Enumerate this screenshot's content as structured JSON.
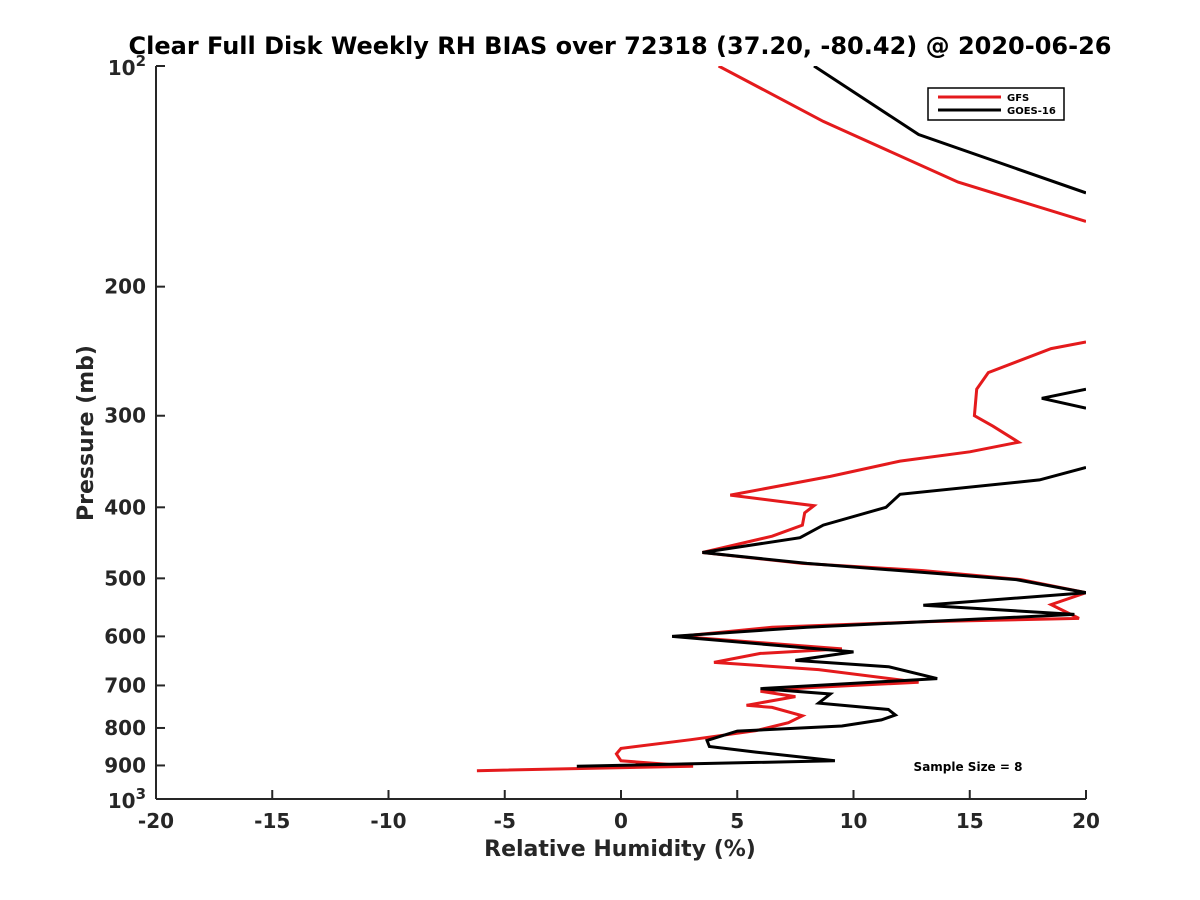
{
  "chart_data": {
    "type": "line",
    "title": "Clear Full Disk Weekly RH BIAS over 72318 (37.20, -80.42) @ 2020-06-26",
    "xlabel": "Relative Humidity (%)",
    "ylabel": "Pressure (mb)",
    "xlim": [
      -20,
      20
    ],
    "ylim": [
      100,
      1000
    ],
    "y_scale": "log",
    "y_reversed": true,
    "grid": false,
    "legend_position": "top-right",
    "x_ticks": [
      "-20",
      "-15",
      "-10",
      "-5",
      "0",
      "5",
      "10",
      "15",
      "20"
    ],
    "y_ticks": [
      {
        "value": 100,
        "base": "10",
        "exp": "2"
      },
      {
        "value": 200,
        "label": "200"
      },
      {
        "value": 300,
        "label": "300"
      },
      {
        "value": 400,
        "label": "400"
      },
      {
        "value": 500,
        "label": "500"
      },
      {
        "value": 600,
        "label": "600"
      },
      {
        "value": 700,
        "label": "700"
      },
      {
        "value": 800,
        "label": "800"
      },
      {
        "value": 900,
        "label": "900"
      },
      {
        "value": 1000,
        "base": "10",
        "exp": "3"
      }
    ],
    "annotation": "Sample Size = 8",
    "series": [
      {
        "name": "GFS",
        "color": "#e41a1c",
        "segments": [
          [
            [
              4.2,
              100
            ],
            [
              8.7,
              119
            ],
            [
              14.5,
              144
            ],
            [
              20,
              163
            ]
          ],
          [
            [
              20,
              238
            ],
            [
              18.5,
              243
            ],
            [
              15.8,
              262
            ],
            [
              15.3,
              276
            ],
            [
              15.2,
              300
            ],
            [
              16.0,
              310
            ],
            [
              17.1,
              326
            ],
            [
              15.0,
              336
            ],
            [
              12.0,
              346
            ],
            [
              9.0,
              363
            ],
            [
              4.7,
              385
            ],
            [
              8.3,
              398
            ],
            [
              7.9,
              407
            ],
            [
              7.8,
              423
            ],
            [
              6.5,
              438
            ],
            [
              3.5,
              461
            ],
            [
              7.8,
              477
            ],
            [
              13.0,
              488
            ],
            [
              17.2,
              502
            ],
            [
              20.0,
              523
            ],
            [
              18.5,
              543
            ],
            [
              19.7,
              567
            ],
            [
              13.0,
              573
            ],
            [
              6.5,
              583
            ],
            [
              2.5,
              600
            ],
            [
              9.5,
              624
            ],
            [
              6.0,
              633
            ],
            [
              4.0,
              651
            ],
            [
              8.5,
              666
            ],
            [
              12.8,
              693
            ],
            [
              8.0,
              705
            ],
            [
              6.0,
              713
            ],
            [
              7.5,
              725
            ],
            [
              5.4,
              745
            ],
            [
              6.5,
              750
            ],
            [
              7.8,
              770
            ],
            [
              7.2,
              787
            ],
            [
              5.8,
              807
            ],
            [
              3.0,
              830
            ],
            [
              0.0,
              853
            ],
            [
              -0.2,
              868
            ],
            [
              0.0,
              887
            ],
            [
              3.1,
              902
            ],
            [
              -6.2,
              915
            ]
          ]
        ]
      },
      {
        "name": "GOES-16",
        "color": "#000000",
        "segments": [
          [
            [
              8.3,
              100
            ],
            [
              12.8,
              124
            ],
            [
              20,
              149
            ]
          ],
          [
            [
              20,
              276
            ],
            [
              18.1,
              284
            ],
            [
              20,
              293
            ]
          ],
          [
            [
              20,
              353
            ],
            [
              18.0,
              367
            ],
            [
              12.0,
              384
            ],
            [
              11.4,
              400
            ],
            [
              8.7,
              423
            ],
            [
              7.7,
              440
            ],
            [
              3.5,
              461
            ],
            [
              8.0,
              477
            ],
            [
              17.0,
              502
            ],
            [
              20.0,
              523
            ],
            [
              13.0,
              544
            ],
            [
              19.5,
              560
            ],
            [
              13.0,
              573
            ],
            [
              8.0,
              583
            ],
            [
              2.2,
              600
            ],
            [
              10.0,
              630
            ],
            [
              7.5,
              647
            ],
            [
              11.5,
              660
            ],
            [
              13.6,
              685
            ],
            [
              6.0,
              707
            ],
            [
              9.0,
              719
            ],
            [
              8.5,
              740
            ],
            [
              11.5,
              755
            ],
            [
              11.8,
              768
            ],
            [
              11.2,
              780
            ],
            [
              9.5,
              795
            ],
            [
              5.0,
              808
            ],
            [
              3.7,
              832
            ],
            [
              3.8,
              848
            ],
            [
              5.8,
              863
            ],
            [
              9.2,
              887
            ],
            [
              -1.9,
              902
            ]
          ]
        ]
      }
    ]
  }
}
